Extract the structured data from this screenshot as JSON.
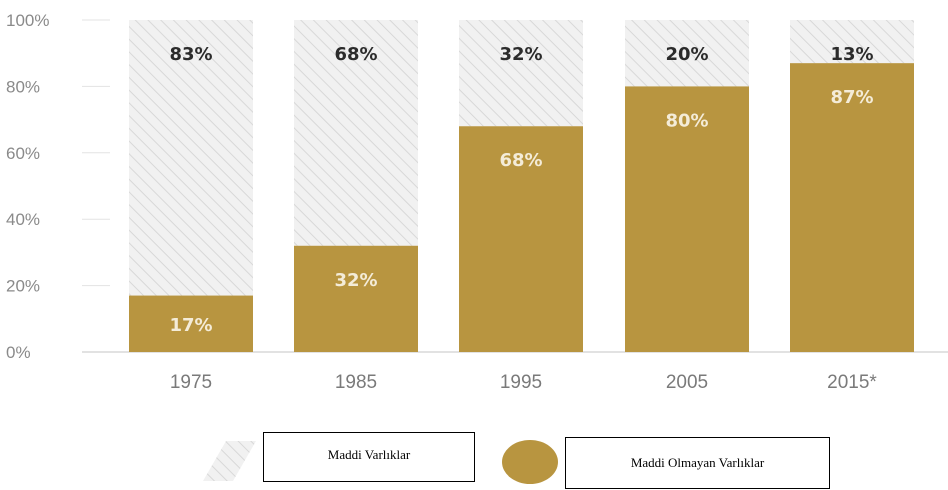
{
  "chart_data": {
    "type": "bar",
    "stacked": true,
    "categories": [
      "1975",
      "1985",
      "1995",
      "2005",
      "2015*"
    ],
    "series": [
      {
        "name": "Maddi Olmayan Varlıklar",
        "values": [
          17,
          32,
          68,
          80,
          87
        ],
        "labels": [
          "17%",
          "32%",
          "68%",
          "80%",
          "87%"
        ],
        "color": "#b89540"
      },
      {
        "name": "Maddi Varlıklar",
        "values": [
          83,
          68,
          32,
          20,
          13
        ],
        "labels": [
          "83%",
          "68%",
          "32%",
          "20%",
          "13%"
        ],
        "color": "#ececec"
      }
    ],
    "y_ticks": [
      "0%",
      "20%",
      "40%",
      "60%",
      "80%",
      "100%"
    ],
    "ylim": [
      0,
      100
    ],
    "grid": false,
    "legend": {
      "position": "bottom"
    }
  },
  "legend": {
    "tangible_label": "Maddi Varlıklar",
    "intangible_label": "Maddi Olmayan Varlıklar"
  },
  "colors": {
    "intangible": "#b89540",
    "hatch_bg": "#f0f0f0",
    "hatch_line": "#dcdcdc"
  }
}
